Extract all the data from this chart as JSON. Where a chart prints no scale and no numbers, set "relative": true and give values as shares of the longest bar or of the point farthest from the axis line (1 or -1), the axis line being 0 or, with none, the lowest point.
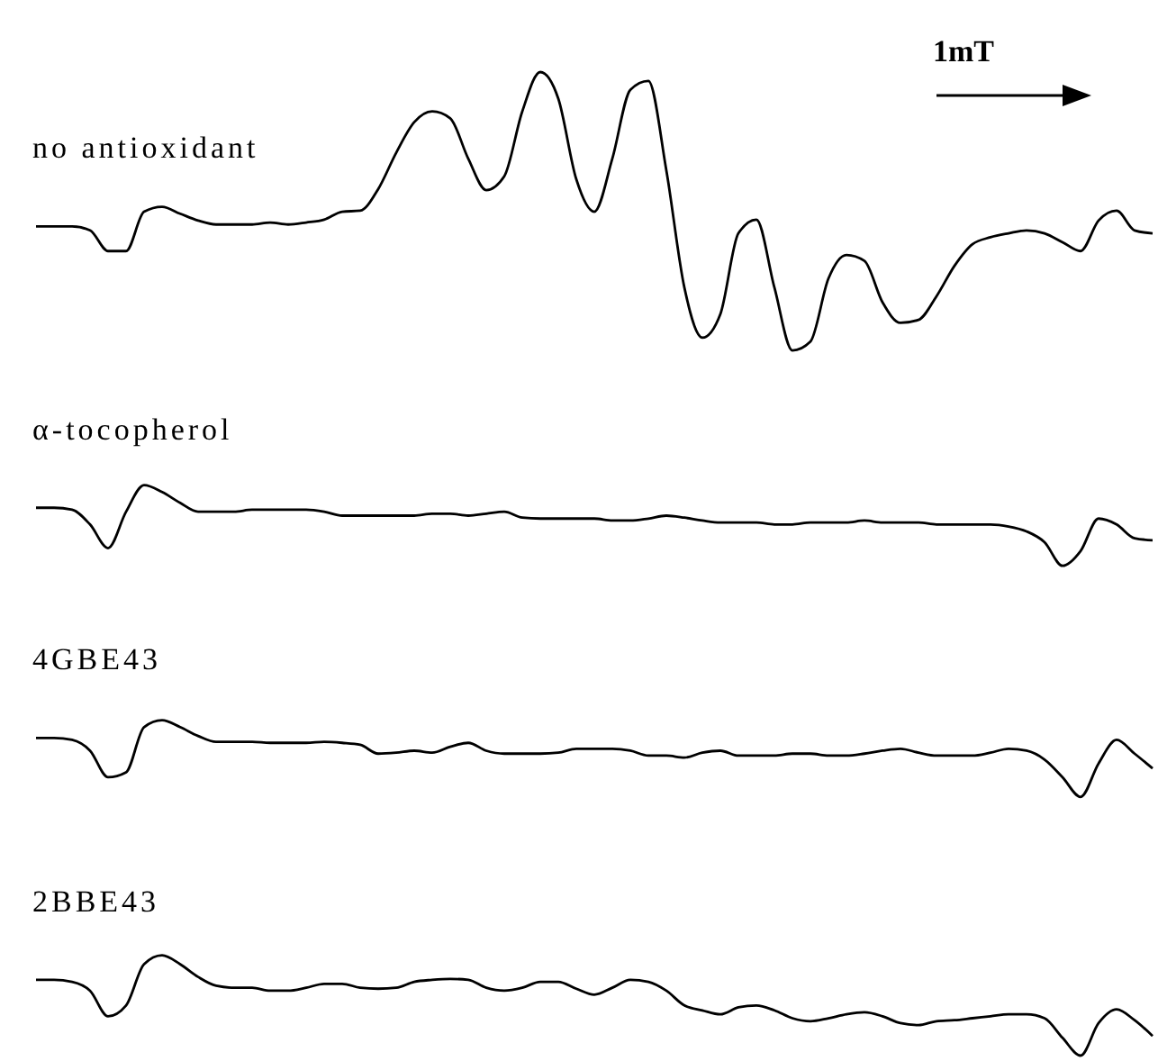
{
  "chart_data": {
    "type": "line",
    "relative": true,
    "annotations": [
      "1mT"
    ],
    "categories": [
      null,
      null,
      null,
      null,
      null,
      null,
      null,
      null,
      null,
      null,
      null,
      null,
      null,
      null,
      null,
      null,
      null,
      null,
      null,
      null,
      null,
      null,
      null,
      null,
      null,
      null,
      null,
      null,
      null,
      null,
      null,
      null,
      null,
      null,
      null,
      null,
      null,
      null,
      null,
      null,
      null,
      null,
      null,
      null,
      null,
      null,
      null,
      null,
      null,
      null,
      null,
      null,
      null,
      null,
      null,
      null,
      null,
      null,
      null,
      null,
      null,
      null,
      null
    ],
    "series": [
      {
        "name": "no antioxidant",
        "color": "#000000",
        "values": [
          0.843,
          0.843,
          0.843,
          0.839,
          0.818,
          0.818,
          0.858,
          0.863,
          0.856,
          0.849,
          0.845,
          0.845,
          0.845,
          0.847,
          0.845,
          0.847,
          0.85,
          0.858,
          0.859,
          0.881,
          0.918,
          0.949,
          0.96,
          0.953,
          0.912,
          0.88,
          0.894,
          0.96,
          1,
          0.973,
          0.891,
          0.858,
          0.912,
          0.982,
          0.991,
          0.9,
          0.781,
          0.73,
          0.754,
          0.836,
          0.85,
          0.781,
          0.717,
          0.726,
          0.79,
          0.814,
          0.808,
          0.766,
          0.745,
          0.748,
          0.772,
          0.803,
          0.825,
          0.832,
          0.836,
          0.839,
          0.836,
          0.827,
          0.818,
          0.849,
          0.859,
          0.839,
          0.836
        ]
      },
      {
        "name": "α-tocopherol",
        "color": "#000000",
        "values": [
          0.557,
          0.557,
          0.555,
          0.54,
          0.516,
          0.553,
          0.58,
          0.573,
          0.562,
          0.553,
          0.553,
          0.553,
          0.555,
          0.555,
          0.555,
          0.555,
          0.553,
          0.549,
          0.549,
          0.549,
          0.549,
          0.549,
          0.551,
          0.551,
          0.549,
          0.551,
          0.553,
          0.547,
          0.546,
          0.546,
          0.546,
          0.546,
          0.544,
          0.544,
          0.546,
          0.549,
          0.547,
          0.544,
          0.542,
          0.542,
          0.542,
          0.54,
          0.54,
          0.542,
          0.542,
          0.542,
          0.544,
          0.542,
          0.542,
          0.542,
          0.54,
          0.54,
          0.54,
          0.54,
          0.538,
          0.533,
          0.522,
          0.498,
          0.513,
          0.546,
          0.54,
          0.526,
          0.524
        ]
      },
      {
        "name": "4GBE43",
        "color": "#000000",
        "values": [
          0.323,
          0.323,
          0.321,
          0.31,
          0.283,
          0.288,
          0.334,
          0.341,
          0.334,
          0.325,
          0.319,
          0.319,
          0.319,
          0.318,
          0.318,
          0.318,
          0.319,
          0.318,
          0.316,
          0.307,
          0.308,
          0.31,
          0.308,
          0.314,
          0.318,
          0.31,
          0.307,
          0.307,
          0.307,
          0.308,
          0.312,
          0.312,
          0.312,
          0.31,
          0.305,
          0.305,
          0.303,
          0.308,
          0.31,
          0.305,
          0.305,
          0.305,
          0.307,
          0.307,
          0.305,
          0.305,
          0.307,
          0.31,
          0.312,
          0.308,
          0.305,
          0.305,
          0.305,
          0.308,
          0.312,
          0.31,
          0.301,
          0.283,
          0.263,
          0.297,
          0.321,
          0.307,
          0.292
        ]
      },
      {
        "name": "2BBE43",
        "color": "#000000",
        "values": [
          0.077,
          0.077,
          0.075,
          0.066,
          0.04,
          0.051,
          0.093,
          0.102,
          0.093,
          0.08,
          0.071,
          0.069,
          0.069,
          0.066,
          0.066,
          0.069,
          0.073,
          0.073,
          0.069,
          0.068,
          0.069,
          0.075,
          0.077,
          0.078,
          0.077,
          0.069,
          0.066,
          0.069,
          0.075,
          0.075,
          0.068,
          0.062,
          0.069,
          0.077,
          0.075,
          0.066,
          0.051,
          0.046,
          0.042,
          0.049,
          0.051,
          0.046,
          0.038,
          0.035,
          0.038,
          0.042,
          0.044,
          0.04,
          0.033,
          0.031,
          0.035,
          0.036,
          0.038,
          0.04,
          0.042,
          0.042,
          0.038,
          0.018,
          0,
          0.033,
          0.047,
          0.036,
          0.02
        ]
      }
    ]
  }
}
